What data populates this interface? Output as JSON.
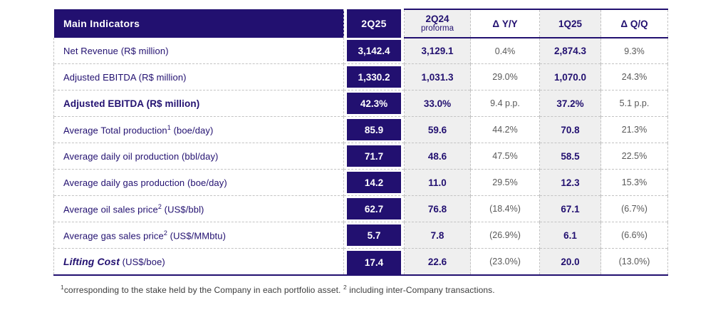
{
  "colors": {
    "navy": "#221070",
    "gray_column_bg": "#efefef",
    "delta_text": "#595959",
    "dashed_border": "#c3c3c3"
  },
  "table": {
    "header": {
      "indicator": "Main Indicators",
      "q2_25": "2Q25",
      "q2_24": "2Q24",
      "q2_24_sub": "proforma",
      "delta_yoy": "Δ Y/Y",
      "q1_25": "1Q25",
      "delta_qoq": "Δ Q/Q"
    },
    "rows": [
      {
        "label": "Net Revenue",
        "sup": "",
        "unit": "(R$ million)",
        "style": "normal",
        "q2_25": "3,142.4",
        "q2_24": "3,129.1",
        "delta_yoy": "0.4%",
        "q1_25": "2,874.3",
        "delta_qoq": "9.3%"
      },
      {
        "label": "Adjusted EBITDA",
        "sup": "",
        "unit": "(R$ million)",
        "style": "normal",
        "q2_25": "1,330.2",
        "q2_24": "1,031.3",
        "delta_yoy": "29.0%",
        "q1_25": "1,070.0",
        "delta_qoq": "24.3%"
      },
      {
        "label": "Adjusted EBITDA",
        "sup": "",
        "unit": "(R$ million)",
        "style": "bold",
        "q2_25": "42.3%",
        "q2_24": "33.0%",
        "delta_yoy": "9.4 p.p.",
        "q1_25": "37.2%",
        "delta_qoq": "5.1 p.p."
      },
      {
        "label": "Average Total production",
        "sup": "1",
        "unit": "(boe/day)",
        "style": "normal",
        "q2_25": "85.9",
        "q2_24": "59.6",
        "delta_yoy": "44.2%",
        "q1_25": "70.8",
        "delta_qoq": "21.3%"
      },
      {
        "label": "Average daily oil production",
        "sup": "",
        "unit": "(bbl/day)",
        "style": "normal",
        "q2_25": "71.7",
        "q2_24": "48.6",
        "delta_yoy": "47.5%",
        "q1_25": "58.5",
        "delta_qoq": "22.5%"
      },
      {
        "label": "Average daily gas production",
        "sup": "",
        "unit": "(boe/day)",
        "style": "normal",
        "q2_25": "14.2",
        "q2_24": "11.0",
        "delta_yoy": "29.5%",
        "q1_25": "12.3",
        "delta_qoq": "15.3%"
      },
      {
        "label": "Average oil sales price",
        "sup": "2",
        "unit": "(US$/bbl)",
        "style": "normal",
        "q2_25": "62.7",
        "q2_24": "76.8",
        "delta_yoy": "(18.4%)",
        "q1_25": "67.1",
        "delta_qoq": "(6.7%)"
      },
      {
        "label": "Average gas sales price",
        "sup": "2",
        "unit": "(US$/MMbtu)",
        "style": "normal",
        "q2_25": "5.7",
        "q2_24": "7.8",
        "delta_yoy": "(26.9%)",
        "q1_25": "6.1",
        "delta_qoq": "(6.6%)"
      },
      {
        "label": "Lifting Cost",
        "sup": "",
        "unit": "(US$/boe)",
        "style": "lifting",
        "q2_25": "17.4",
        "q2_24": "22.6",
        "delta_yoy": "(23.0%)",
        "q1_25": "20.0",
        "delta_qoq": "(13.0%)"
      }
    ]
  },
  "footnote": {
    "sup1": "1",
    "text1": "corresponding to the stake held by the Company in each portfolio asset.",
    "sup2": "2",
    "text2": " including inter-Company transactions."
  }
}
